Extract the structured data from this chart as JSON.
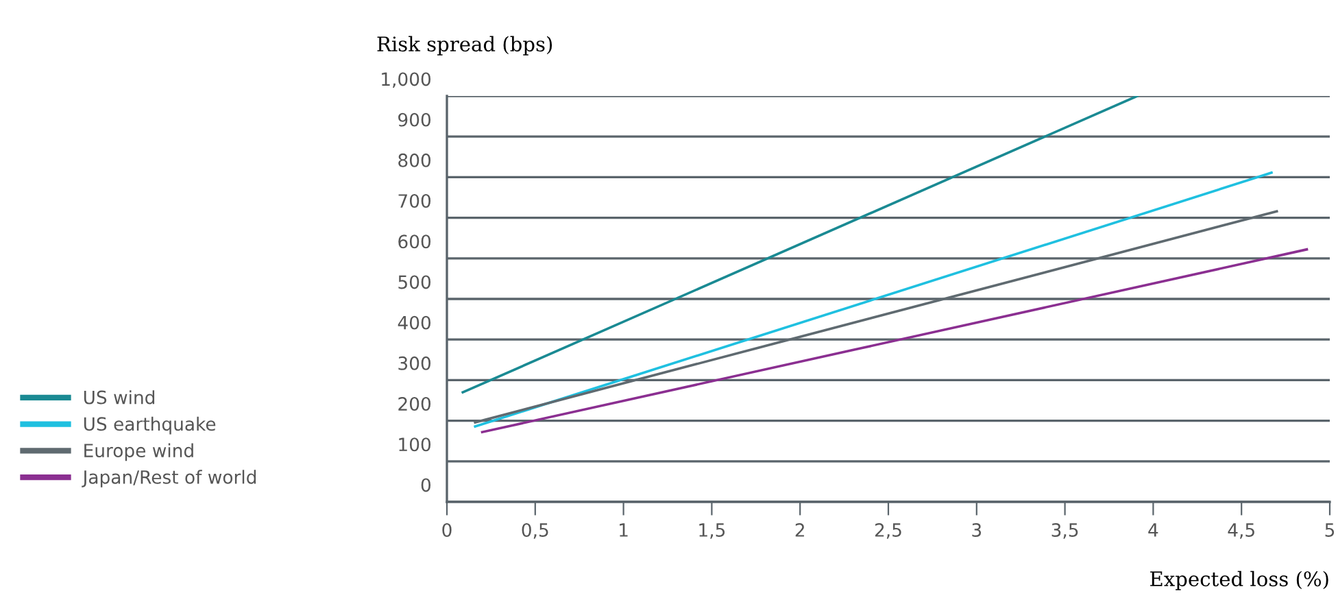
{
  "chart_data": {
    "type": "line",
    "xlabel": "Expected loss (%)",
    "ylabel": "Risk spread (bps)",
    "series": [
      {
        "name": "US wind",
        "color": "#1a8a93",
        "x": [
          0.09,
          3.91
        ],
        "values": [
          270,
          1000
        ]
      },
      {
        "name": "US earthquake",
        "color": "#1fc0e0",
        "x": [
          0.16,
          4.67
        ],
        "values": [
          186,
          811
        ]
      },
      {
        "name": "Europe wind",
        "color": "#5f6a70",
        "x": [
          0.16,
          4.7
        ],
        "values": [
          196,
          716
        ]
      },
      {
        "name": "Japan/Rest of world",
        "color": "#8b2f91",
        "x": [
          0.2,
          4.87
        ],
        "values": [
          172,
          622
        ]
      }
    ],
    "xlim": [
      0,
      5
    ],
    "ylim": [
      0,
      1000
    ],
    "xticks": [
      0,
      {
        "value": 0.5,
        "label": "0,5"
      },
      1,
      {
        "value": 1.5,
        "label": "1,5"
      },
      2,
      {
        "value": 2.5,
        "label": "2,5"
      },
      3,
      {
        "value": 3.5,
        "label": "3,5"
      },
      4,
      {
        "value": 4.5,
        "label": "4,5"
      },
      5
    ],
    "yticks": [
      0,
      100,
      200,
      300,
      400,
      500,
      600,
      700,
      800,
      900,
      {
        "value": 1000,
        "label": "1,000"
      }
    ],
    "grid": "y",
    "legend": "left",
    "marker": "none",
    "line_style": "solid"
  }
}
